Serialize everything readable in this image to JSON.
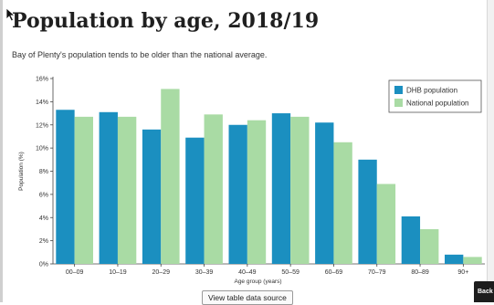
{
  "page": {
    "title": "Population by age, 2018/19",
    "subtitle": "Bay of Plenty's population tends to be older than the national average.",
    "source_button": "View table data source",
    "back_button": "Back"
  },
  "colors": {
    "dhb": "#1b8fc0",
    "national": "#a9dba4",
    "axis": "#444444"
  },
  "icons": {
    "cursor": "arrow-cursor-icon"
  },
  "chart_data": {
    "type": "bar",
    "title": "",
    "xlabel": "Age group (years)",
    "ylabel": "Population (%)",
    "ylim": [
      0,
      16
    ],
    "yticks": [
      0,
      2,
      4,
      6,
      8,
      10,
      12,
      14,
      16
    ],
    "ytick_suffix": "%",
    "grid": false,
    "legend_position": "top-right",
    "categories": [
      "00–09",
      "10–19",
      "20–29",
      "30–39",
      "40–49",
      "50–59",
      "60–69",
      "70–79",
      "80–89",
      "90+"
    ],
    "series": [
      {
        "name": "DHB population",
        "color": "#1b8fc0",
        "values": [
          13.3,
          13.1,
          11.6,
          10.9,
          12.0,
          13.0,
          12.2,
          9.0,
          4.1,
          0.8
        ]
      },
      {
        "name": "National population",
        "color": "#a9dba4",
        "values": [
          12.7,
          12.7,
          15.1,
          12.9,
          12.4,
          12.7,
          10.5,
          6.9,
          3.0,
          0.6
        ]
      }
    ]
  }
}
